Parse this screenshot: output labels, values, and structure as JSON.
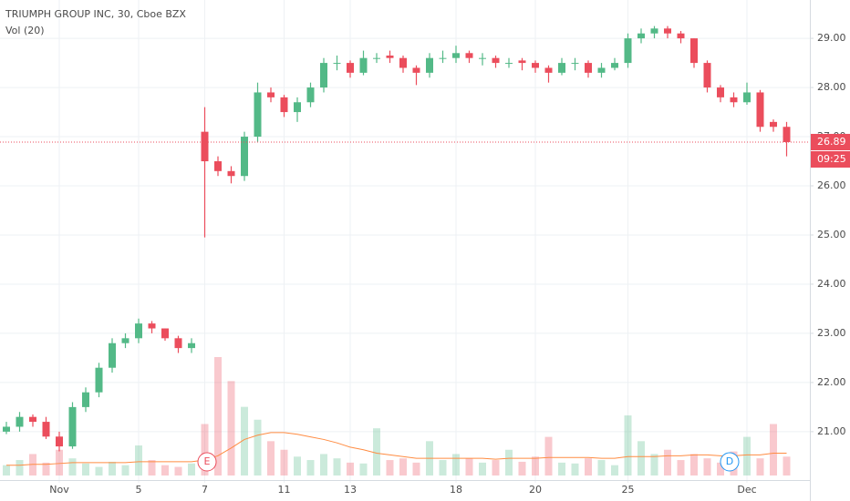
{
  "chart_data": {
    "type": "candlestick",
    "title": "TRIUMPH GROUP INC, 30, Cboe BZX",
    "indicator": "Vol (20)",
    "categories": [
      null,
      null,
      null,
      null,
      "Nov",
      null,
      null,
      null,
      null,
      null,
      "5",
      null,
      null,
      null,
      null,
      "7",
      null,
      null,
      null,
      null,
      null,
      "11",
      null,
      null,
      null,
      null,
      "13",
      null,
      null,
      null,
      null,
      null,
      null,
      null,
      "18",
      null,
      null,
      null,
      null,
      null,
      "20",
      null,
      null,
      null,
      null,
      null,
      null,
      "25",
      null,
      null,
      null,
      null,
      null,
      null,
      null,
      null,
      "Dec",
      null,
      null,
      null
    ],
    "open": [
      21.0,
      21.1,
      21.3,
      21.2,
      20.9,
      20.7,
      21.5,
      21.8,
      22.3,
      22.8,
      22.9,
      23.2,
      23.1,
      22.9,
      22.7,
      27.1,
      26.5,
      26.3,
      26.2,
      27.0,
      27.9,
      27.8,
      27.5,
      27.7,
      28.0,
      28.5,
      28.5,
      28.3,
      28.6,
      28.65,
      28.6,
      28.4,
      28.3,
      28.6,
      28.6,
      28.7,
      28.6,
      28.6,
      28.5,
      28.55,
      28.5,
      28.4,
      28.3,
      28.5,
      28.5,
      28.3,
      28.4,
      28.5,
      29.0,
      29.1,
      29.2,
      29.1,
      29.0,
      28.5,
      28.0,
      27.8,
      27.7,
      27.9,
      27.3,
      27.2
    ],
    "high": [
      21.2,
      21.4,
      21.35,
      21.3,
      21.0,
      21.6,
      21.9,
      22.4,
      22.9,
      23.0,
      23.3,
      23.25,
      23.1,
      22.95,
      22.9,
      27.6,
      26.6,
      26.4,
      27.1,
      28.1,
      28.0,
      27.85,
      27.8,
      28.1,
      28.6,
      28.65,
      28.55,
      28.75,
      28.7,
      28.75,
      28.65,
      28.45,
      28.7,
      28.75,
      28.85,
      28.75,
      28.7,
      28.65,
      28.6,
      28.6,
      28.55,
      28.45,
      28.6,
      28.6,
      28.55,
      28.5,
      28.6,
      29.1,
      29.2,
      29.25,
      29.25,
      29.15,
      29.0,
      28.55,
      28.05,
      27.9,
      28.1,
      27.95,
      27.35,
      27.3
    ],
    "low": [
      20.95,
      21.0,
      21.1,
      20.85,
      20.6,
      20.65,
      21.4,
      21.7,
      22.2,
      22.7,
      22.8,
      23.0,
      22.85,
      22.6,
      22.6,
      24.95,
      26.2,
      26.05,
      26.1,
      26.9,
      27.7,
      27.4,
      27.3,
      27.6,
      27.9,
      28.35,
      28.2,
      28.25,
      28.5,
      28.5,
      28.3,
      28.05,
      28.2,
      28.5,
      28.5,
      28.5,
      28.45,
      28.4,
      28.4,
      28.35,
      28.3,
      28.1,
      28.25,
      28.35,
      28.2,
      28.2,
      28.35,
      28.4,
      28.9,
      29.0,
      29.0,
      28.9,
      28.4,
      27.9,
      27.7,
      27.6,
      27.65,
      27.1,
      27.1,
      26.6
    ],
    "close": [
      21.1,
      21.3,
      21.2,
      20.9,
      20.7,
      21.5,
      21.8,
      22.3,
      22.8,
      22.9,
      23.2,
      23.1,
      22.9,
      22.7,
      22.8,
      26.5,
      26.3,
      26.2,
      27.0,
      27.9,
      27.8,
      27.5,
      27.7,
      28.0,
      28.5,
      28.5,
      28.3,
      28.6,
      28.6,
      28.6,
      28.4,
      28.3,
      28.6,
      28.6,
      28.7,
      28.6,
      28.6,
      28.5,
      28.5,
      28.5,
      28.4,
      28.3,
      28.5,
      28.5,
      28.3,
      28.4,
      28.5,
      29.0,
      29.1,
      29.2,
      29.1,
      29.0,
      28.5,
      28.0,
      27.8,
      27.7,
      27.9,
      27.2,
      27.2,
      26.89
    ],
    "volume": [
      12,
      18,
      25,
      15,
      30,
      20,
      14,
      10,
      16,
      12,
      35,
      18,
      12,
      10,
      14,
      60,
      138,
      110,
      80,
      65,
      40,
      30,
      22,
      18,
      25,
      20,
      15,
      14,
      55,
      18,
      20,
      15,
      40,
      18,
      25,
      20,
      15,
      18,
      30,
      16,
      22,
      45,
      15,
      14,
      20,
      18,
      12,
      70,
      40,
      25,
      30,
      18,
      25,
      20,
      15,
      28,
      45,
      20,
      60,
      22
    ],
    "volume_ma": [
      12,
      12,
      13,
      13,
      14,
      15,
      15,
      15,
      15,
      15,
      16,
      16,
      16,
      16,
      16,
      18,
      23,
      32,
      42,
      47,
      50,
      50,
      48,
      45,
      42,
      38,
      33,
      30,
      26,
      24,
      22,
      20,
      20,
      20,
      20,
      20,
      20,
      19,
      20,
      20,
      20,
      21,
      21,
      21,
      21,
      20,
      20,
      22,
      22,
      22,
      23,
      23,
      24,
      24,
      23,
      23,
      24,
      24,
      26,
      26
    ],
    "up_color": "#53b987",
    "down_color": "#eb4d5c",
    "ma_color": "#ff8c42",
    "last_price": 26.89,
    "countdown": "09:25",
    "events": [
      "E",
      "D"
    ],
    "ylim": [
      19.96,
      29.78
    ],
    "yticks": [
      {
        "value": 21,
        "label": "21.00"
      },
      {
        "value": 22,
        "label": "22.00"
      },
      {
        "value": 23,
        "label": "23.00"
      },
      {
        "value": 24,
        "label": "24.00"
      },
      {
        "value": 25,
        "label": "25.00"
      },
      {
        "value": 26,
        "label": "26.00"
      },
      {
        "value": 27,
        "label": "27.00"
      },
      {
        "value": 28,
        "label": "28.00"
      },
      {
        "value": 29,
        "label": "29.00"
      }
    ],
    "grid": true
  }
}
